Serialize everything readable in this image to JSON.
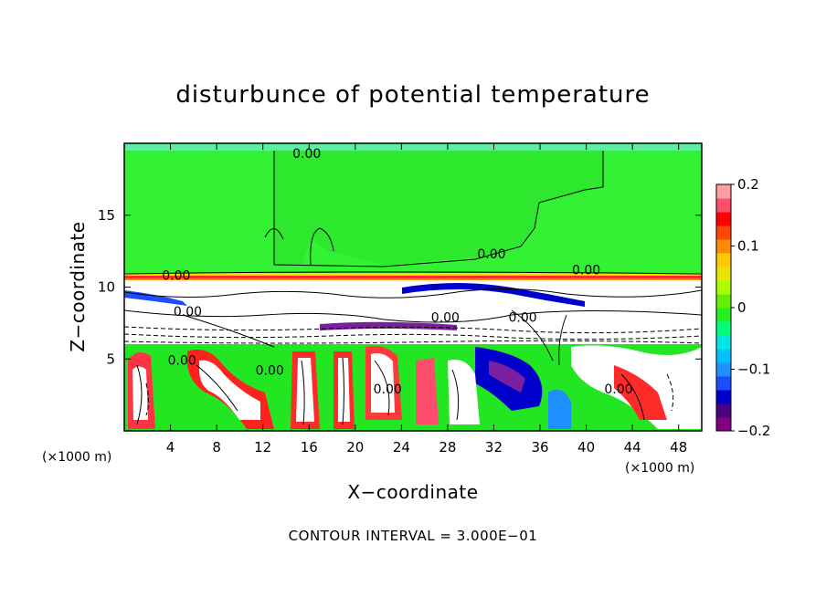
{
  "chart_data": {
    "type": "heatmap",
    "title": "disturbunce of potential temperature",
    "xlabel": "X−coordinate",
    "ylabel": "Z−coordinate",
    "x_unit": "(×1000 m)",
    "y_unit": "(×1000 m)",
    "xlim": [
      0,
      50
    ],
    "ylim": [
      0,
      20
    ],
    "x_ticks": [
      4,
      8,
      12,
      16,
      20,
      24,
      28,
      32,
      36,
      40,
      44,
      48
    ],
    "x_tick_labels": [
      "4",
      "8",
      "12",
      "16",
      "20",
      "24",
      "28",
      "32",
      "36",
      "40",
      "44",
      "48"
    ],
    "y_ticks": [
      5,
      10,
      15
    ],
    "y_tick_labels": [
      "5",
      "10",
      "15"
    ],
    "colorbar": {
      "range": [
        -0.2,
        0.2
      ],
      "tick_values": [
        0.2,
        0.1,
        0,
        -0.1,
        -0.2
      ],
      "tick_labels": [
        "0.2",
        "0.1",
        "0",
        "−0.1",
        "−0.2"
      ],
      "colors": [
        "#800080",
        "#4b0082",
        "#0000cd",
        "#1e4dff",
        "#1e90ff",
        "#00bfff",
        "#00e5e5",
        "#00ff7f",
        "#22ee22",
        "#66ee00",
        "#aaff00",
        "#e6e600",
        "#ffc800",
        "#ff8c00",
        "#ff4500",
        "#ff0000",
        "#ff4d6d",
        "#ffa0a0"
      ]
    },
    "contour_labels": [
      {
        "text": "0.00",
        "x": 15.8,
        "z": 19.0
      },
      {
        "text": "0.00",
        "x": 31.8,
        "z": 12.0
      },
      {
        "text": "0.00",
        "x": 4.5,
        "z": 10.5
      },
      {
        "text": "0.00",
        "x": 5.5,
        "z": 8.0
      },
      {
        "text": "0.00",
        "x": 27.8,
        "z": 7.6
      },
      {
        "text": "0.00",
        "x": 34.5,
        "z": 7.6
      },
      {
        "text": "0.00",
        "x": 40.0,
        "z": 10.9
      },
      {
        "text": "0.00",
        "x": 12.6,
        "z": 3.9
      },
      {
        "text": "0.00",
        "x": 22.8,
        "z": 2.6
      },
      {
        "text": "0.00",
        "x": 42.8,
        "z": 2.6
      },
      {
        "text": "0.00",
        "x": 5.0,
        "z": 4.6
      }
    ],
    "footer": "CONTOUR INTERVAL = 3.000E−01"
  }
}
